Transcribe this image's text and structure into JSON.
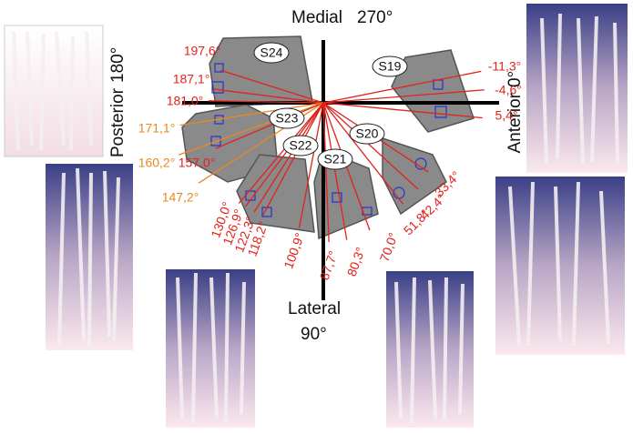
{
  "axes": [
    {
      "name": "Medial",
      "angle": "270°"
    },
    {
      "name": "Lateral",
      "angle": "90°"
    },
    {
      "name": "Posterior",
      "angle": "180°"
    },
    {
      "name": "Anterior",
      "angle": "0°"
    }
  ],
  "samples": [
    "S24",
    "S19",
    "S23",
    "S22",
    "S21",
    "S20"
  ],
  "colors": {
    "red": "#e3221c",
    "orange": "#e88a1c"
  },
  "rays": [
    {
      "value": 197.6,
      "label": "197,6°",
      "color": "red"
    },
    {
      "value": 187.1,
      "label": "187,1°",
      "color": "red"
    },
    {
      "value": 181.0,
      "label": "181,0°",
      "color": "red"
    },
    {
      "value": 171.1,
      "label": "171,1°",
      "color": "orange"
    },
    {
      "value": 160.2,
      "label": "160,2°",
      "color": "orange"
    },
    {
      "value": 157.0,
      "label": "157,0°",
      "color": "red"
    },
    {
      "value": 147.2,
      "label": "147,2°",
      "color": "orange"
    },
    {
      "value": 130.0,
      "label": "130,0°",
      "color": "red"
    },
    {
      "value": 126.9,
      "label": "126,9°",
      "color": "red"
    },
    {
      "value": 122.3,
      "label": "122,3°",
      "color": "red"
    },
    {
      "value": 118.2,
      "label": "118,2°",
      "color": "red"
    },
    {
      "value": 100.9,
      "label": "100,9°",
      "color": "red"
    },
    {
      "value": 87.7,
      "label": "87,7°",
      "color": "red"
    },
    {
      "value": 80.3,
      "label": "80,3°",
      "color": "red"
    },
    {
      "value": 70.0,
      "label": "70,0°",
      "color": "red"
    },
    {
      "value": 51.8,
      "label": "51,8°",
      "color": "red"
    },
    {
      "value": 42.4,
      "label": "42,4°",
      "color": "red"
    },
    {
      "value": 33.4,
      "label": "33,4°",
      "color": "red"
    },
    {
      "value": 5.4,
      "label": "5,4°",
      "color": "red"
    },
    {
      "value": -4.6,
      "label": "-4,6°",
      "color": "red"
    },
    {
      "value": -11.3,
      "label": "-11,3°",
      "color": "red"
    }
  ]
}
